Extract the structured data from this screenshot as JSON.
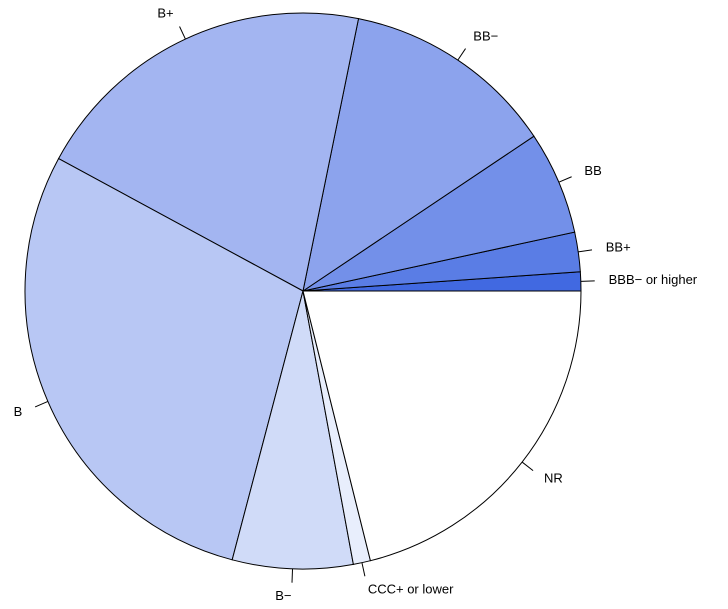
{
  "chart_data": {
    "type": "pie",
    "categories": [
      "BBB− or higher",
      "BB+",
      "BB",
      "BB−",
      "B+",
      "B",
      "B−",
      "CCC+ or lower",
      "NR"
    ],
    "values": [
      1.1,
      2.3,
      6.0,
      12.4,
      20.3,
      28.8,
      7.0,
      1.0,
      21.1
    ],
    "colors": [
      "#4169e1",
      "#5a7de5",
      "#7390e9",
      "#8ca3ed",
      "#a3b5f1",
      "#b8c7f4",
      "#d0dbf8",
      "#e8eefc",
      "#ffffff"
    ]
  }
}
